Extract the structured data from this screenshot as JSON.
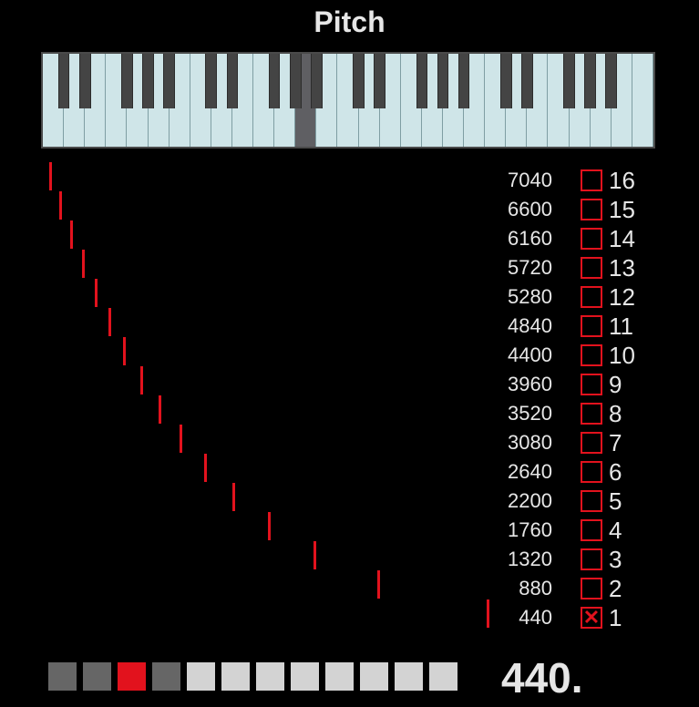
{
  "title": "Pitch",
  "keyboard": {
    "white_keys": 29,
    "highlighted_white_key": 12,
    "highlighted_black_key": null,
    "colors": {
      "white": "#cfe5e8",
      "black": "#444444",
      "highlight": "#5f5f63"
    }
  },
  "partials": {
    "color": "#e2121d",
    "freq_labels": [
      "7040",
      "6600",
      "6160",
      "5720",
      "5280",
      "4840",
      "4400",
      "3960",
      "3520",
      "3080",
      "2640",
      "2200",
      "1760",
      "1320",
      "880",
      "440"
    ],
    "harmonic_labels": [
      "16",
      "15",
      "14",
      "13",
      "12",
      "11",
      "10",
      "9",
      "8",
      "7",
      "6",
      "5",
      "4",
      "3",
      "2",
      "1"
    ],
    "checked": [
      false,
      false,
      false,
      false,
      false,
      false,
      false,
      false,
      false,
      false,
      false,
      false,
      false,
      false,
      false,
      true
    ],
    "check_mark": "✕"
  },
  "selector_cells": [
    {
      "state": "dim",
      "color": "#666666"
    },
    {
      "state": "dim",
      "color": "#666666"
    },
    {
      "state": "active",
      "color": "#e2121d"
    },
    {
      "state": "dim",
      "color": "#666666"
    },
    {
      "state": "off",
      "color": "#d3d3d3"
    },
    {
      "state": "off",
      "color": "#d3d3d3"
    },
    {
      "state": "off",
      "color": "#d3d3d3"
    },
    {
      "state": "off",
      "color": "#d3d3d3"
    },
    {
      "state": "off",
      "color": "#d3d3d3"
    },
    {
      "state": "off",
      "color": "#d3d3d3"
    },
    {
      "state": "off",
      "color": "#d3d3d3"
    },
    {
      "state": "off",
      "color": "#d3d3d3"
    }
  ],
  "readout": "440."
}
